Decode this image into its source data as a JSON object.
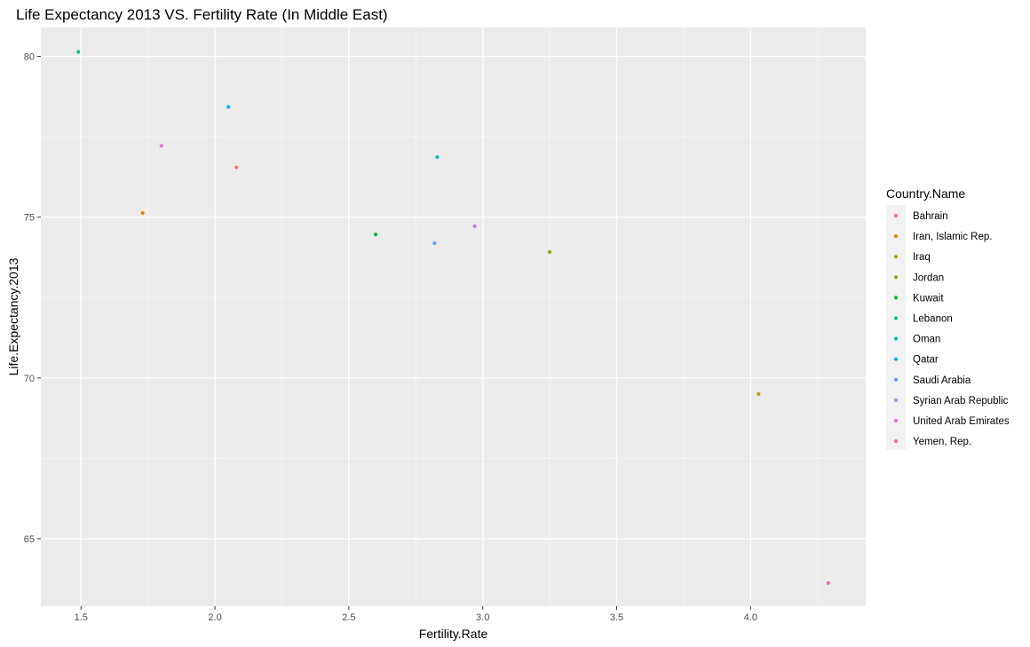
{
  "chart_data": {
    "type": "scatter",
    "title": "Life Expectancy 2013 VS. Fertility Rate (In Middle East)",
    "xlabel": "Fertility.Rate",
    "ylabel": "Life.Expectancy.2013",
    "xlim": [
      1.35,
      4.43
    ],
    "ylim": [
      62.9,
      80.9
    ],
    "xticks": [
      {
        "value": 1.5,
        "label": "1.5"
      },
      {
        "value": 2.0,
        "label": "2.0"
      },
      {
        "value": 2.5,
        "label": "2.5"
      },
      {
        "value": 3.0,
        "label": "3.0"
      },
      {
        "value": 3.5,
        "label": "3.5"
      },
      {
        "value": 4.0,
        "label": "4.0"
      }
    ],
    "yticks": [
      {
        "value": 65,
        "label": "65"
      },
      {
        "value": 70,
        "label": "70"
      },
      {
        "value": 75,
        "label": "75"
      },
      {
        "value": 80,
        "label": "80"
      }
    ],
    "grid": true,
    "legend_title": "Country.Name",
    "legend_position": "right",
    "series": [
      {
        "name": "Bahrain",
        "color": "#F8766D",
        "x": 2.08,
        "y": 76.55
      },
      {
        "name": "Iran, Islamic Rep.",
        "color": "#DE8C00",
        "x": 1.73,
        "y": 75.13
      },
      {
        "name": "Iraq",
        "color": "#B79F00",
        "x": 4.03,
        "y": 69.5
      },
      {
        "name": "Jordan",
        "color": "#7CAE00",
        "x": 3.25,
        "y": 73.92
      },
      {
        "name": "Kuwait",
        "color": "#00BA38",
        "x": 2.6,
        "y": 74.46
      },
      {
        "name": "Lebanon",
        "color": "#00C08B",
        "x": 1.49,
        "y": 80.14
      },
      {
        "name": "Oman",
        "color": "#00BFC4",
        "x": 2.83,
        "y": 76.87
      },
      {
        "name": "Qatar",
        "color": "#00B4F0",
        "x": 2.05,
        "y": 78.43
      },
      {
        "name": "Saudi Arabia",
        "color": "#619CFF",
        "x": 2.82,
        "y": 74.19
      },
      {
        "name": "Syrian Arab Republic",
        "color": "#C77CFF",
        "x": 2.97,
        "y": 74.72
      },
      {
        "name": "United Arab Emirates",
        "color": "#F564E3",
        "x": 1.8,
        "y": 77.22
      },
      {
        "name": "Yemen, Rep.",
        "color": "#FF64B0",
        "x": 4.29,
        "y": 63.62
      }
    ]
  }
}
